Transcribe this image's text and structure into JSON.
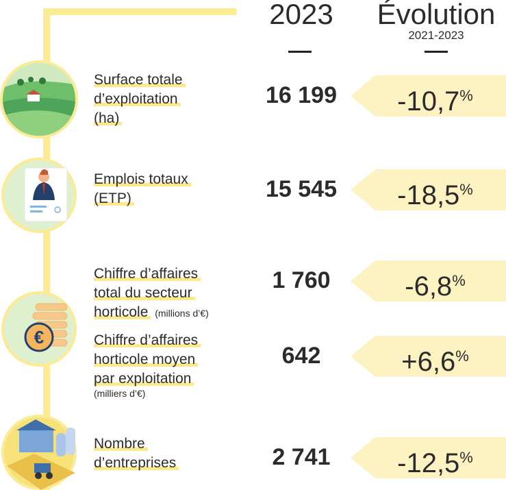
{
  "header": {
    "year": "2023",
    "evolution": "Évolution",
    "period": "2021-2023"
  },
  "rows": [
    {
      "label": [
        "Surface totale",
        "d’exploitation",
        "(ha)"
      ],
      "value": "16 199",
      "evolution": "-10,7",
      "unit": "%"
    },
    {
      "label": [
        "Emplois totaux",
        "(ETP)"
      ],
      "value": "15 545",
      "evolution": "-18,5",
      "unit": "%"
    },
    {
      "label": [
        "Chiffre d’affaires",
        "total du secteur",
        "horticole"
      ],
      "note": "(millions d’€)",
      "value": "1 760",
      "evolution": "-6,8",
      "unit": "%"
    },
    {
      "label": [
        "Chiffre d’affaires",
        "horticole moyen",
        "par exploitation"
      ],
      "note": "(milliers d’€)",
      "value": "642",
      "evolution": "+6,6",
      "unit": "%"
    },
    {
      "label": [
        "Nombre",
        "d’entreprises"
      ],
      "value": "2 741",
      "evolution": "-12,5",
      "unit": "%"
    }
  ]
}
